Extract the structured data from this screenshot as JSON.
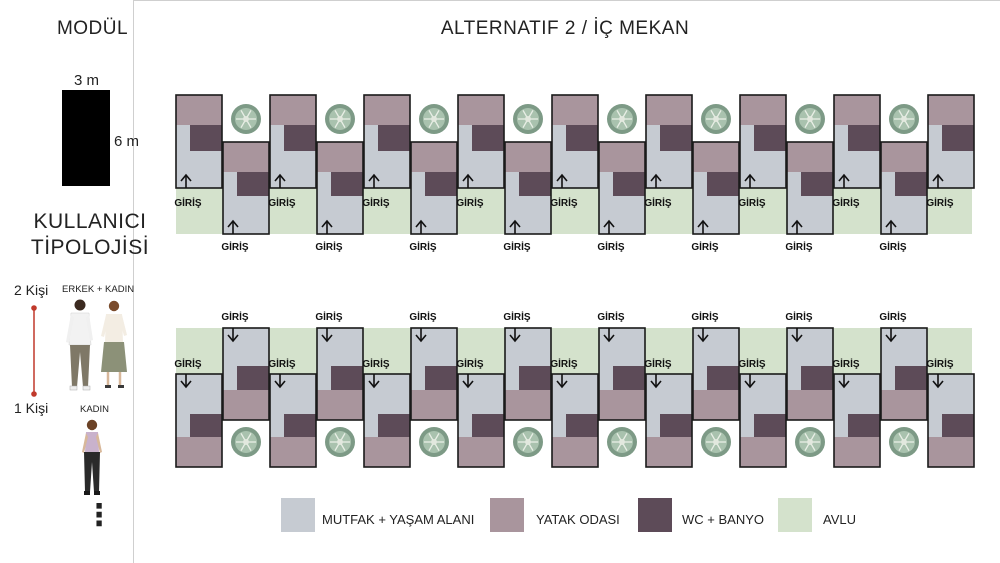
{
  "header": {
    "left_title": "MODÜL",
    "main_title": "ALTERNATIF 2 / İÇ MEKAN"
  },
  "module": {
    "width_label": "3 m",
    "height_label": "6 m"
  },
  "typology": {
    "title_line1": "KULLANICI",
    "title_line2": "TİPOLOJİSİ",
    "max_label": "2 Kişi",
    "min_label": "1 Kişi",
    "couple_label": "ERKEK + KADIN",
    "woman_label": "KADIN",
    "continuation": "⋮"
  },
  "plan": {
    "entrance_label": "GİRİŞ",
    "unit_count_per_row": 9,
    "colors": {
      "kitchen_living": "#c6cbd2",
      "bedroom": "#a9959d",
      "wc_bath": "#5d4b58",
      "courtyard": "#d4e2cc",
      "outline": "#1a1a1a"
    }
  },
  "legend": {
    "items": [
      {
        "label": "MUTFAK + YAŞAM ALANI",
        "color": "#c6cbd2"
      },
      {
        "label": "YATAK ODASI",
        "color": "#a9959d"
      },
      {
        "label": "WC + BANYO",
        "color": "#5d4b58"
      },
      {
        "label": "AVLU",
        "color": "#d4e2cc"
      }
    ]
  }
}
